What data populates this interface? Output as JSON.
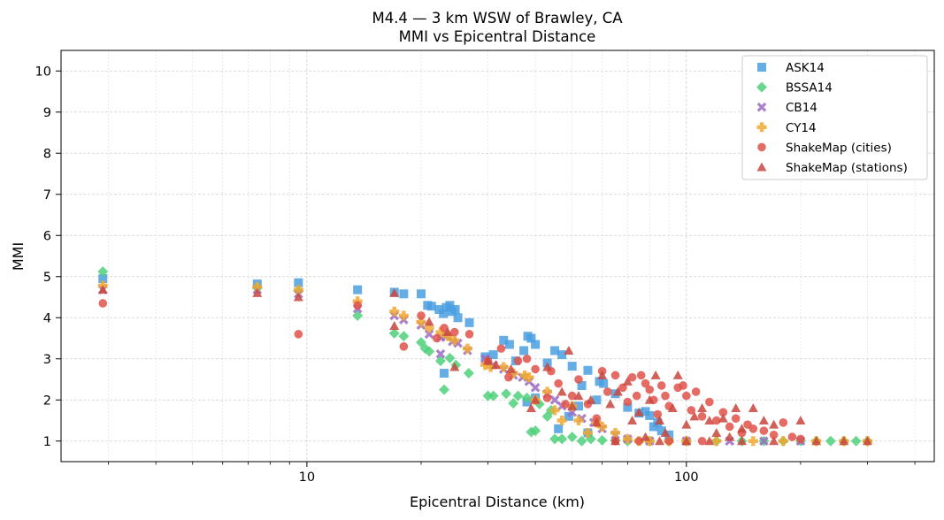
{
  "chart_data": {
    "type": "scatter",
    "title": "M4.4 — 3 km WSW of Brawley, CA",
    "subtitle": "MMI vs Epicentral Distance",
    "xlabel": "Epicentral Distance (km)",
    "ylabel": "MMI",
    "xscale": "log",
    "xlim": [
      2.25,
      450
    ],
    "ylim": [
      0.5,
      10.5
    ],
    "x_ticks": [
      10,
      100
    ],
    "x_tick_labels": [
      "10",
      "100"
    ],
    "y_ticks": [
      1,
      2,
      3,
      4,
      5,
      6,
      7,
      8,
      9,
      10
    ],
    "y_tick_labels": [
      "1",
      "2",
      "3",
      "4",
      "5",
      "6",
      "7",
      "8",
      "9",
      "10"
    ],
    "grid": true,
    "legend_position": "top-right",
    "series": [
      {
        "name": "ASK14",
        "marker": "square",
        "color": "#4a9fe0",
        "points": [
          [
            2.9,
            4.95
          ],
          [
            7.4,
            4.82
          ],
          [
            9.5,
            4.85
          ],
          [
            13.6,
            4.68
          ],
          [
            17.0,
            4.62
          ],
          [
            18.0,
            4.58
          ],
          [
            20.0,
            4.58
          ],
          [
            20.8,
            4.3
          ],
          [
            21.3,
            4.28
          ],
          [
            22.3,
            4.2
          ],
          [
            22.9,
            4.1
          ],
          [
            23.3,
            4.25
          ],
          [
            23.8,
            4.3
          ],
          [
            24.1,
            4.15
          ],
          [
            24.6,
            4.2
          ],
          [
            25.0,
            4.0
          ],
          [
            26.8,
            3.88
          ],
          [
            29.5,
            3.05
          ],
          [
            31.0,
            3.1
          ],
          [
            33.0,
            3.45
          ],
          [
            34.2,
            3.35
          ],
          [
            35.5,
            2.95
          ],
          [
            37.3,
            3.2
          ],
          [
            38.2,
            3.55
          ],
          [
            39.0,
            3.5
          ],
          [
            40.0,
            3.35
          ],
          [
            43.0,
            2.9
          ],
          [
            45.0,
            3.2
          ],
          [
            47.0,
            3.1
          ],
          [
            50.0,
            2.82
          ],
          [
            53.0,
            2.35
          ],
          [
            55.0,
            2.72
          ],
          [
            58.0,
            2.0
          ],
          [
            59.0,
            2.45
          ],
          [
            60.5,
            2.4
          ],
          [
            65.0,
            2.15
          ],
          [
            70.0,
            1.82
          ],
          [
            75.0,
            1.68
          ],
          [
            78.0,
            1.72
          ],
          [
            80.0,
            1.62
          ],
          [
            82.0,
            1.35
          ],
          [
            84.0,
            1.45
          ],
          [
            86.0,
            1.25
          ],
          [
            90.0,
            1.15
          ],
          [
            52.0,
            1.85
          ],
          [
            49.0,
            1.6
          ],
          [
            46.0,
            1.3
          ],
          [
            55.0,
            1.2
          ],
          [
            40.0,
            2.05
          ],
          [
            38.0,
            1.95
          ],
          [
            23.0,
            2.65
          ]
        ]
      },
      {
        "name": "BSSA14",
        "marker": "diamond",
        "color": "#4fd17a",
        "points": [
          [
            2.9,
            5.12
          ],
          [
            7.4,
            4.72
          ],
          [
            9.5,
            4.65
          ],
          [
            13.6,
            4.05
          ],
          [
            17.0,
            3.62
          ],
          [
            18.0,
            3.55
          ],
          [
            20.0,
            3.4
          ],
          [
            20.5,
            3.25
          ],
          [
            21.0,
            3.18
          ],
          [
            22.5,
            2.95
          ],
          [
            23.0,
            2.25
          ],
          [
            23.8,
            3.02
          ],
          [
            24.7,
            2.85
          ],
          [
            26.7,
            2.65
          ],
          [
            30.0,
            2.1
          ],
          [
            31.0,
            2.1
          ],
          [
            33.5,
            2.15
          ],
          [
            35.0,
            1.92
          ],
          [
            36.0,
            2.1
          ],
          [
            38.0,
            2.05
          ],
          [
            39.0,
            1.22
          ],
          [
            40.0,
            1.25
          ],
          [
            43.0,
            1.6
          ],
          [
            45.0,
            1.05
          ],
          [
            47.0,
            1.05
          ],
          [
            50.0,
            1.1
          ],
          [
            53.0,
            1.0
          ],
          [
            56.0,
            1.05
          ],
          [
            60.0,
            1.02
          ],
          [
            65.0,
            1.02
          ],
          [
            70.0,
            1.0
          ],
          [
            80.0,
            1.0
          ],
          [
            90.0,
            1.0
          ],
          [
            100.0,
            1.0
          ],
          [
            120.0,
            1.0
          ],
          [
            140.0,
            1.0
          ],
          [
            160.0,
            1.0
          ],
          [
            180.0,
            1.0
          ],
          [
            200.0,
            1.0
          ],
          [
            220.0,
            1.0
          ],
          [
            240.0,
            1.0
          ],
          [
            260.0,
            1.0
          ],
          [
            280.0,
            1.0
          ],
          [
            300.0,
            1.0
          ],
          [
            44.0,
            1.75
          ],
          [
            41.0,
            1.9
          ]
        ]
      },
      {
        "name": "CB14",
        "marker": "x",
        "color": "#9b6bc4",
        "points": [
          [
            2.9,
            4.68
          ],
          [
            7.4,
            4.68
          ],
          [
            9.5,
            4.58
          ],
          [
            13.6,
            4.22
          ],
          [
            17.0,
            4.05
          ],
          [
            18.0,
            3.95
          ],
          [
            20.0,
            3.82
          ],
          [
            21.0,
            3.6
          ],
          [
            22.5,
            3.52
          ],
          [
            23.3,
            3.55
          ],
          [
            24.2,
            3.42
          ],
          [
            25.0,
            3.38
          ],
          [
            26.5,
            3.2
          ],
          [
            29.5,
            3.0
          ],
          [
            31.0,
            2.85
          ],
          [
            33.0,
            2.75
          ],
          [
            35.0,
            2.6
          ],
          [
            37.0,
            2.55
          ],
          [
            38.5,
            2.45
          ],
          [
            40.0,
            2.3
          ],
          [
            43.0,
            2.15
          ],
          [
            45.0,
            2.0
          ],
          [
            47.0,
            1.85
          ],
          [
            50.0,
            1.7
          ],
          [
            53.0,
            1.55
          ],
          [
            57.0,
            1.45
          ],
          [
            60.0,
            1.3
          ],
          [
            65.0,
            1.15
          ],
          [
            70.0,
            1.05
          ],
          [
            80.0,
            1.0
          ],
          [
            100.0,
            1.0
          ],
          [
            130.0,
            1.0
          ],
          [
            160.0,
            1.0
          ],
          [
            200.0,
            1.0
          ],
          [
            22.5,
            3.12
          ]
        ]
      },
      {
        "name": "CY14",
        "marker": "plus",
        "color": "#f0a830",
        "points": [
          [
            2.9,
            4.78
          ],
          [
            7.4,
            4.75
          ],
          [
            9.5,
            4.68
          ],
          [
            13.6,
            4.4
          ],
          [
            17.0,
            4.15
          ],
          [
            18.0,
            4.05
          ],
          [
            20.0,
            3.9
          ],
          [
            21.0,
            3.75
          ],
          [
            22.5,
            3.65
          ],
          [
            23.5,
            3.55
          ],
          [
            24.5,
            3.45
          ],
          [
            26.5,
            3.25
          ],
          [
            29.5,
            2.85
          ],
          [
            30.5,
            2.8
          ],
          [
            33.0,
            2.8
          ],
          [
            35.0,
            2.65
          ],
          [
            37.5,
            2.6
          ],
          [
            38.5,
            2.55
          ],
          [
            40.0,
            2.0
          ],
          [
            43.0,
            2.2
          ],
          [
            45.0,
            1.75
          ],
          [
            47.0,
            1.5
          ],
          [
            50.0,
            1.85
          ],
          [
            52.0,
            1.5
          ],
          [
            55.0,
            1.2
          ],
          [
            58.0,
            1.45
          ],
          [
            60.0,
            1.35
          ],
          [
            65.0,
            1.2
          ],
          [
            70.0,
            1.05
          ],
          [
            75.0,
            1.0
          ],
          [
            80.0,
            1.0
          ],
          [
            90.0,
            1.0
          ],
          [
            100.0,
            1.0
          ],
          [
            120.0,
            1.0
          ],
          [
            150.0,
            1.0
          ],
          [
            180.0,
            1.0
          ],
          [
            220.0,
            1.0
          ],
          [
            260.0,
            1.0
          ],
          [
            300.0,
            1.0
          ]
        ]
      },
      {
        "name": "ShakeMap (cities)",
        "marker": "circle",
        "color": "#e0524a",
        "points": [
          [
            2.9,
            4.35
          ],
          [
            9.5,
            3.6
          ],
          [
            13.6,
            4.3
          ],
          [
            18.0,
            3.3
          ],
          [
            20.0,
            4.05
          ],
          [
            22.0,
            3.5
          ],
          [
            23.0,
            3.75
          ],
          [
            24.5,
            3.65
          ],
          [
            26.8,
            3.6
          ],
          [
            30.0,
            2.95
          ],
          [
            32.5,
            3.25
          ],
          [
            34.0,
            2.55
          ],
          [
            36.0,
            2.95
          ],
          [
            38.0,
            3.0
          ],
          [
            40.0,
            2.75
          ],
          [
            43.0,
            2.05
          ],
          [
            44.0,
            2.7
          ],
          [
            46.0,
            2.4
          ],
          [
            48.0,
            1.9
          ],
          [
            50.0,
            2.1
          ],
          [
            52.0,
            2.5
          ],
          [
            55.0,
            1.9
          ],
          [
            58.0,
            1.55
          ],
          [
            60.0,
            2.7
          ],
          [
            62.0,
            2.2
          ],
          [
            65.0,
            2.6
          ],
          [
            68.0,
            2.3
          ],
          [
            70.0,
            1.95
          ],
          [
            72.0,
            2.55
          ],
          [
            74.0,
            2.1
          ],
          [
            76.0,
            2.6
          ],
          [
            78.0,
            2.4
          ],
          [
            80.0,
            2.25
          ],
          [
            82.0,
            2.0
          ],
          [
            84.0,
            1.65
          ],
          [
            86.0,
            2.35
          ],
          [
            88.0,
            2.1
          ],
          [
            90.0,
            1.85
          ],
          [
            95.0,
            2.3
          ],
          [
            98.0,
            2.35
          ],
          [
            100.0,
            2.1
          ],
          [
            103.0,
            1.75
          ],
          [
            106.0,
            2.2
          ],
          [
            110.0,
            1.6
          ],
          [
            115.0,
            1.95
          ],
          [
            120.0,
            1.5
          ],
          [
            125.0,
            1.7
          ],
          [
            130.0,
            1.35
          ],
          [
            135.0,
            1.55
          ],
          [
            140.0,
            1.2
          ],
          [
            145.0,
            1.4
          ],
          [
            150.0,
            1.3
          ],
          [
            160.0,
            1.25
          ],
          [
            170.0,
            1.15
          ],
          [
            180.0,
            1.45
          ],
          [
            190.0,
            1.1
          ],
          [
            200.0,
            1.05
          ],
          [
            65.0,
            1.0
          ],
          [
            75.0,
            1.0
          ],
          [
            90.0,
            1.0
          ],
          [
            110.0,
            1.0
          ]
        ]
      },
      {
        "name": "ShakeMap (stations)",
        "marker": "triangle",
        "color": "#c8473e",
        "points": [
          [
            2.9,
            4.68
          ],
          [
            7.4,
            4.6
          ],
          [
            9.5,
            4.5
          ],
          [
            17.0,
            4.6
          ],
          [
            17.0,
            3.8
          ],
          [
            21.0,
            3.9
          ],
          [
            23.5,
            3.65
          ],
          [
            24.5,
            2.8
          ],
          [
            30.0,
            2.95
          ],
          [
            31.5,
            2.85
          ],
          [
            34.5,
            2.75
          ],
          [
            39.0,
            1.8
          ],
          [
            40.0,
            2.0
          ],
          [
            43.0,
            2.8
          ],
          [
            47.0,
            2.2
          ],
          [
            49.0,
            3.2
          ],
          [
            50.0,
            1.85
          ],
          [
            52.0,
            2.1
          ],
          [
            56.0,
            2.0
          ],
          [
            58.0,
            1.45
          ],
          [
            60.0,
            2.6
          ],
          [
            63.0,
            1.9
          ],
          [
            66.0,
            2.2
          ],
          [
            70.0,
            2.45
          ],
          [
            72.0,
            1.5
          ],
          [
            75.0,
            1.7
          ],
          [
            78.0,
            1.1
          ],
          [
            80.0,
            2.0
          ],
          [
            83.0,
            2.6
          ],
          [
            85.0,
            1.5
          ],
          [
            88.0,
            1.2
          ],
          [
            92.0,
            1.8
          ],
          [
            95.0,
            2.6
          ],
          [
            100.0,
            1.4
          ],
          [
            105.0,
            1.6
          ],
          [
            110.0,
            1.8
          ],
          [
            115.0,
            1.5
          ],
          [
            120.0,
            1.2
          ],
          [
            125.0,
            1.55
          ],
          [
            130.0,
            1.1
          ],
          [
            135.0,
            1.8
          ],
          [
            140.0,
            1.3
          ],
          [
            150.0,
            1.8
          ],
          [
            160.0,
            1.5
          ],
          [
            170.0,
            1.4
          ],
          [
            200.0,
            1.5
          ],
          [
            220.0,
            1.0
          ],
          [
            260.0,
            1.0
          ],
          [
            300.0,
            1.0
          ],
          [
            65.0,
            1.0
          ],
          [
            85.0,
            1.0
          ],
          [
            100.0,
            1.0
          ],
          [
            115.0,
            1.0
          ],
          [
            140.0,
            1.0
          ],
          [
            170.0,
            1.0
          ]
        ]
      }
    ]
  }
}
